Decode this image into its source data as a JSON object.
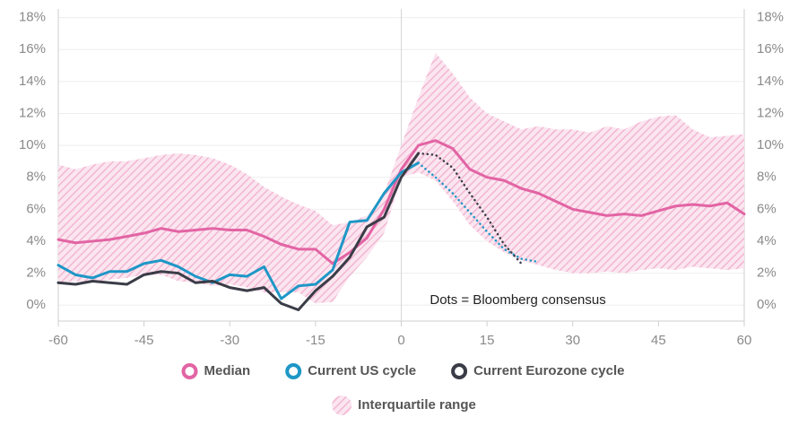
{
  "chart_data": {
    "type": "line",
    "x": [
      -60,
      -57,
      -54,
      -51,
      -48,
      -45,
      -42,
      -39,
      -36,
      -33,
      -30,
      -27,
      -24,
      -21,
      -18,
      -15,
      -12,
      -9,
      -6,
      -3,
      0,
      3,
      6,
      9,
      12,
      15,
      18,
      21,
      24,
      27,
      30,
      33,
      36,
      39,
      42,
      45,
      48,
      51,
      54,
      57,
      60
    ],
    "xlim": [
      -60,
      60
    ],
    "xticks": [
      -60,
      -45,
      -30,
      -15,
      0,
      15,
      30,
      45,
      60
    ],
    "ylim": [
      -1,
      18.2
    ],
    "yticks": [
      {
        "value": 0,
        "label": "0%"
      },
      {
        "value": 2,
        "label": "2%"
      },
      {
        "value": 4,
        "label": "4%"
      },
      {
        "value": 6,
        "label": "6%"
      },
      {
        "value": 8,
        "label": "8%"
      },
      {
        "value": 10,
        "label": "10%"
      },
      {
        "value": 12,
        "label": "12%"
      },
      {
        "value": 14,
        "label": "14%"
      },
      {
        "value": 16,
        "label": "16%"
      },
      {
        "value": 18,
        "label": "18%"
      }
    ],
    "grid": true,
    "band": {
      "name": "Interquartile range",
      "color": "#f2b6d2",
      "upper": [
        8.8,
        8.5,
        8.8,
        9.0,
        9.0,
        9.2,
        9.4,
        9.5,
        9.4,
        9.2,
        8.8,
        8.2,
        7.4,
        6.8,
        6.3,
        5.9,
        5.0,
        5.2,
        5.6,
        7.0,
        10.0,
        13.0,
        15.8,
        14.5,
        13.0,
        12.0,
        11.5,
        11.0,
        11.2,
        11.0,
        11.0,
        10.8,
        11.2,
        11.0,
        11.5,
        11.8,
        11.9,
        11.0,
        10.5,
        10.6,
        10.7
      ],
      "lower": [
        1.4,
        1.5,
        1.4,
        1.6,
        1.7,
        1.9,
        1.9,
        1.5,
        1.4,
        1.2,
        1.3,
        1.1,
        0.8,
        0.8,
        0.8,
        0.1,
        0.2,
        1.8,
        3.0,
        4.5,
        8.0,
        8.3,
        7.8,
        6.5,
        5.0,
        4.0,
        3.3,
        2.8,
        2.5,
        2.2,
        2.0,
        2.0,
        2.1,
        2.0,
        2.2,
        2.3,
        2.2,
        2.4,
        2.3,
        2.2,
        2.3
      ]
    },
    "series": [
      {
        "name": "Median",
        "color": "#e264a4",
        "line_style": "solid",
        "values": [
          4.1,
          3.9,
          4.0,
          4.1,
          4.3,
          4.5,
          4.8,
          4.6,
          4.7,
          4.8,
          4.7,
          4.7,
          4.3,
          3.8,
          3.5,
          3.5,
          2.6,
          3.3,
          4.2,
          6.0,
          8.5,
          10.0,
          10.3,
          9.8,
          8.5,
          8.0,
          7.8,
          7.3,
          7.0,
          6.5,
          6.0,
          5.8,
          5.6,
          5.7,
          5.6,
          5.9,
          6.2,
          6.3,
          6.2,
          6.4,
          5.7
        ]
      },
      {
        "name": "Current US cycle",
        "color": "#1e97c6",
        "line_style": "solid",
        "values": [
          2.5,
          1.9,
          1.7,
          2.1,
          2.1,
          2.6,
          2.8,
          2.4,
          1.8,
          1.4,
          1.9,
          1.8,
          2.4,
          0.4,
          1.2,
          1.3,
          2.2,
          5.2,
          5.3,
          7.0,
          8.3,
          8.9,
          null,
          null,
          null,
          null,
          null,
          null,
          null,
          null,
          null,
          null,
          null,
          null,
          null,
          null,
          null,
          null,
          null,
          null,
          null
        ]
      },
      {
        "name": "Current Eurozone cycle",
        "color": "#3a3c47",
        "line_style": "solid",
        "values": [
          1.4,
          1.3,
          1.5,
          1.4,
          1.3,
          1.9,
          2.1,
          2.0,
          1.4,
          1.5,
          1.1,
          0.9,
          1.1,
          0.1,
          -0.3,
          0.9,
          1.8,
          3.0,
          4.9,
          5.5,
          8.0,
          9.5,
          null,
          null,
          null,
          null,
          null,
          null,
          null,
          null,
          null,
          null,
          null,
          null,
          null,
          null,
          null,
          null,
          null,
          null,
          null
        ]
      },
      {
        "color": "#1e97c6",
        "line_style": "dotted",
        "values": [
          null,
          null,
          null,
          null,
          null,
          null,
          null,
          null,
          null,
          null,
          null,
          null,
          null,
          null,
          null,
          null,
          null,
          null,
          null,
          null,
          null,
          8.9,
          8.0,
          7.0,
          5.8,
          4.6,
          3.5,
          2.9,
          2.7,
          null,
          null,
          null,
          null,
          null,
          null,
          null,
          null,
          null,
          null,
          null,
          null
        ]
      },
      {
        "color": "#3a3c47",
        "line_style": "dotted",
        "values": [
          null,
          null,
          null,
          null,
          null,
          null,
          null,
          null,
          null,
          null,
          null,
          null,
          null,
          null,
          null,
          null,
          null,
          null,
          null,
          null,
          null,
          9.5,
          9.4,
          8.6,
          7.0,
          5.5,
          3.8,
          2.6,
          null,
          null,
          null,
          null,
          null,
          null,
          null,
          null,
          null,
          null,
          null,
          null,
          null
        ]
      }
    ],
    "annotation": {
      "text": "Dots = Bloomberg consensus",
      "x": 5,
      "y": 0.3
    }
  }
}
